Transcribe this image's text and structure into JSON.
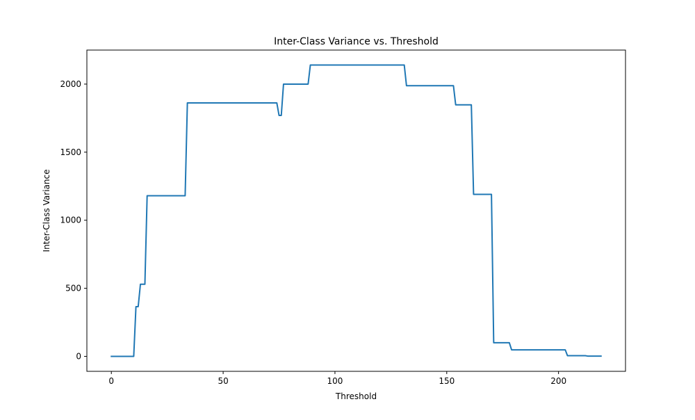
{
  "chart_data": {
    "type": "line",
    "title": "Inter-Class Variance vs. Threshold",
    "xlabel": "Threshold",
    "ylabel": "Inter-Class Variance",
    "xlim": [
      -10.95,
      229.95
    ],
    "ylim": [
      -110,
      2250
    ],
    "xticks": [
      0,
      50,
      100,
      150,
      200
    ],
    "yticks": [
      0,
      500,
      1000,
      1500,
      2000
    ],
    "grid": false,
    "line_color": "#1f77b4",
    "series": [
      {
        "x": [
          0,
          10,
          11,
          12,
          13,
          14,
          15,
          16,
          17,
          33,
          34,
          74,
          75,
          76,
          77,
          88,
          89,
          131,
          132,
          153,
          154,
          161,
          162,
          170,
          171,
          178,
          179,
          203,
          204,
          212,
          213,
          219
        ],
        "y": [
          0,
          0,
          365,
          365,
          530,
          530,
          530,
          1180,
          1180,
          1180,
          1862,
          1862,
          1770,
          1770,
          2000,
          2000,
          2140,
          2140,
          1988,
          1988,
          1848,
          1848,
          1190,
          1190,
          100,
          100,
          48,
          48,
          5,
          5,
          2,
          2
        ]
      }
    ]
  }
}
